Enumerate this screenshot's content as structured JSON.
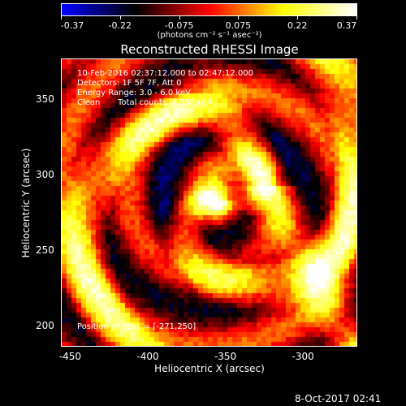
{
  "colorbar": {
    "colors": [
      "#0000ff",
      "#000000",
      "#ff0000",
      "#ffff00",
      "#ffffff"
    ],
    "ticks": [
      "-0.37",
      "-0.22",
      "-0.075",
      "0.075",
      "0.22",
      "0.37"
    ],
    "units": "(photons cm⁻² s⁻¹ asec⁻²)"
  },
  "timestamp": "8-Oct-2017 02:41",
  "chart_data": {
    "type": "heatmap",
    "title": "Reconstructed RHESSI Image",
    "xlabel": "Heliocentric X (arcsec)",
    "ylabel": "Heliocentric Y (arcsec)",
    "xlim": [
      -456,
      -265
    ],
    "ylim": [
      186,
      377
    ],
    "x_ticks": [
      -450,
      -400,
      -350,
      -300
    ],
    "y_ticks": [
      200,
      250,
      300,
      350
    ],
    "annotations": {
      "time_range": "10-Feb-2016 02:37:12.000 to 02:47:12.000",
      "detectors": "Detectors: 1F 5F 7F, Att 0",
      "energy": "Energy Range: 3.0 - 6.0 keV",
      "method": "Clean",
      "counts": "Total counts: 4.58E+04",
      "peak": "Position of Peak = [-271,250]"
    },
    "peak": [
      -271,
      250
    ],
    "colorbar_range": [
      -0.37,
      0.37
    ],
    "grid": false
  }
}
